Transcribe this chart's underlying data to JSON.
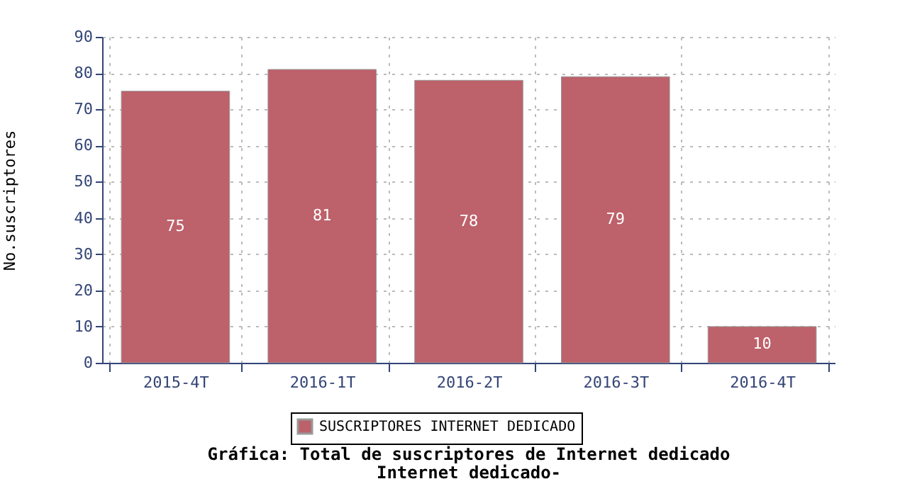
{
  "chart_data": {
    "type": "bar",
    "title": "Gráfica: Total de suscriptores de Internet dedicado",
    "subtitle": "Internet dedicado-",
    "ylabel": "No.suscriptores",
    "categories": [
      "2015-4T",
      "2016-1T",
      "2016-2T",
      "2016-3T",
      "2016-4T"
    ],
    "series": [
      {
        "name": "SUSCRIPTORES INTERNET DEDICADO",
        "color": "#bd616a",
        "values": [
          75,
          81,
          78,
          79,
          10
        ]
      }
    ],
    "ylim": [
      0,
      90
    ],
    "yticks": [
      0,
      10,
      20,
      30,
      40,
      50,
      60,
      70,
      80,
      90
    ],
    "grid": true,
    "legend": "bottom",
    "data_labels": true
  }
}
